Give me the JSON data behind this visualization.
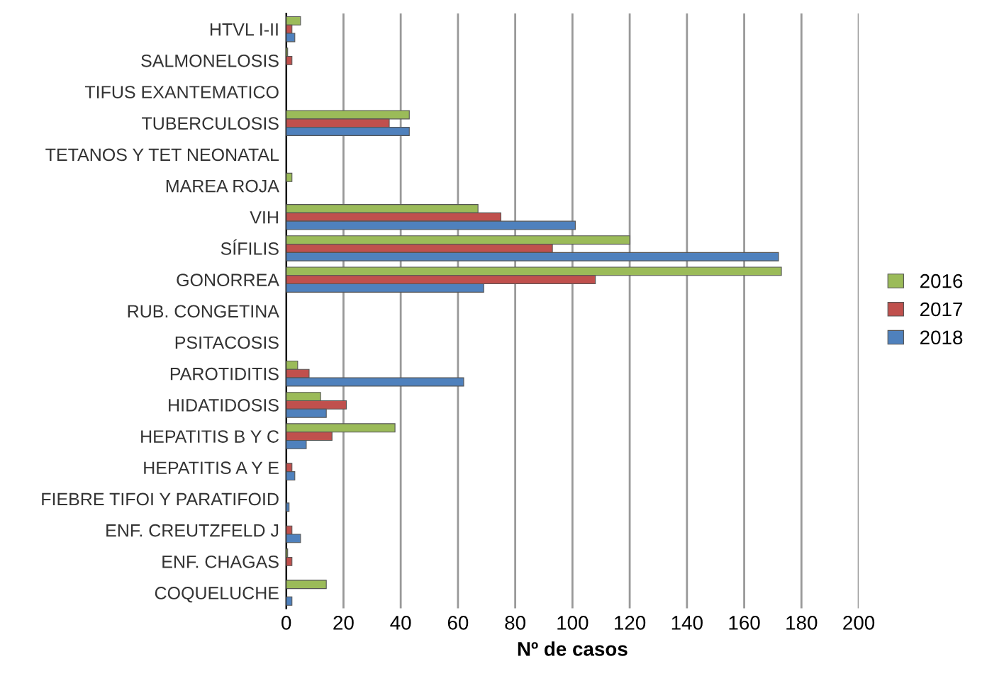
{
  "chart_data": {
    "type": "bar",
    "orientation": "horizontal",
    "xlabel": "Nº de casos",
    "categories": [
      "HTVL I-II",
      "SALMONELOSIS",
      "TIFUS EXANTEMATICO",
      "TUBERCULOSIS",
      "TETANOS Y TET NEONATAL",
      "MAREA ROJA",
      "VIH",
      "SÍFILIS",
      "GONORREA",
      "RUB. CONGETINA",
      "PSITACOSIS",
      "PAROTIDITIS",
      "HIDATIDOSIS",
      "HEPATITIS B Y C",
      "HEPATITIS A Y E",
      "FIEBRE TIFOI Y PARATIFOID",
      "ENF. CREUTZFELD J",
      "ENF. CHAGAS",
      "COQUELUCHE"
    ],
    "series": [
      {
        "name": "2016",
        "color": "#9bbb59",
        "values": [
          5,
          0.5,
          0,
          43,
          0,
          2,
          67,
          120,
          173,
          0,
          0,
          4,
          12,
          38,
          0,
          0,
          0,
          0.5,
          14
        ]
      },
      {
        "name": "2017",
        "color": "#c0504d",
        "values": [
          2,
          2,
          0,
          36,
          0,
          0,
          75,
          93,
          108,
          0,
          0,
          8,
          21,
          16,
          2,
          0,
          2,
          2,
          0
        ]
      },
      {
        "name": "2018",
        "color": "#4f81bd",
        "values": [
          3,
          0,
          0,
          43,
          0,
          0,
          101,
          172,
          69,
          0,
          0,
          62,
          14,
          7,
          3,
          1,
          5,
          0,
          2
        ]
      }
    ],
    "xlim": [
      0,
      200
    ],
    "xticks": [
      0,
      20,
      40,
      60,
      80,
      100,
      120,
      140,
      160,
      180,
      200
    ],
    "grid": "x",
    "legend": "right"
  }
}
